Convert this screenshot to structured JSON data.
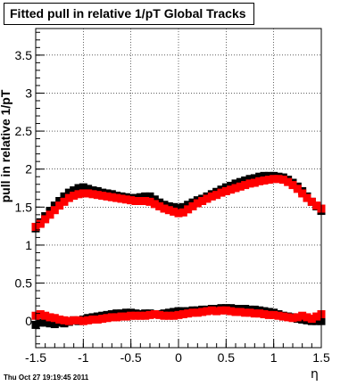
{
  "title": "Fitted pull in relative 1/pT  Global Tracks",
  "timestamp": "Thu Oct 27 19:19:45 2011",
  "chart_data": {
    "type": "scatter",
    "title": "Fitted pull in relative 1/pT  Global Tracks",
    "xlabel": "η",
    "ylabel": "pull in relative 1/pT",
    "xlim": [
      -1.5,
      1.5
    ],
    "ylim": [
      -0.35,
      3.85
    ],
    "x_ticks": [
      "-1.5",
      "-1",
      "-0.5",
      "0",
      "0.5",
      "1",
      "1.5"
    ],
    "y_ticks": [
      "0",
      "0.5",
      "1",
      "1.5",
      "2",
      "2.5",
      "3",
      "3.5"
    ],
    "grid": true,
    "marker": "square",
    "x": [
      -1.5,
      -1.45,
      -1.4,
      -1.35,
      -1.3,
      -1.25,
      -1.2,
      -1.15,
      -1.1,
      -1.05,
      -1.0,
      -0.95,
      -0.9,
      -0.85,
      -0.8,
      -0.75,
      -0.7,
      -0.65,
      -0.6,
      -0.55,
      -0.5,
      -0.45,
      -0.4,
      -0.35,
      -0.3,
      -0.25,
      -0.2,
      -0.15,
      -0.1,
      -0.05,
      0.0,
      0.05,
      0.1,
      0.15,
      0.2,
      0.25,
      0.3,
      0.35,
      0.4,
      0.45,
      0.5,
      0.55,
      0.6,
      0.65,
      0.7,
      0.75,
      0.8,
      0.85,
      0.9,
      0.95,
      1.0,
      1.05,
      1.1,
      1.15,
      1.2,
      1.25,
      1.3,
      1.35,
      1.4,
      1.45,
      1.5
    ],
    "series": [
      {
        "color": "#000000",
        "values": [
          1.22,
          1.3,
          1.38,
          1.45,
          1.52,
          1.58,
          1.64,
          1.69,
          1.72,
          1.75,
          1.76,
          1.74,
          1.72,
          1.71,
          1.69,
          1.68,
          1.67,
          1.65,
          1.64,
          1.63,
          1.62,
          1.62,
          1.63,
          1.64,
          1.64,
          1.6,
          1.56,
          1.53,
          1.51,
          1.5,
          1.49,
          1.5,
          1.53,
          1.56,
          1.59,
          1.61,
          1.64,
          1.67,
          1.7,
          1.73,
          1.76,
          1.78,
          1.81,
          1.83,
          1.85,
          1.87,
          1.88,
          1.9,
          1.91,
          1.91,
          1.91,
          1.9,
          1.89,
          1.86,
          1.82,
          1.77,
          1.71,
          1.64,
          1.57,
          1.51,
          1.45
        ]
      },
      {
        "color": "#ff0000",
        "values": [
          1.24,
          1.28,
          1.34,
          1.4,
          1.46,
          1.52,
          1.57,
          1.62,
          1.65,
          1.67,
          1.68,
          1.68,
          1.67,
          1.66,
          1.65,
          1.64,
          1.63,
          1.62,
          1.61,
          1.6,
          1.59,
          1.58,
          1.58,
          1.58,
          1.57,
          1.54,
          1.51,
          1.48,
          1.46,
          1.44,
          1.42,
          1.43,
          1.47,
          1.51,
          1.55,
          1.58,
          1.61,
          1.64,
          1.66,
          1.69,
          1.71,
          1.73,
          1.75,
          1.77,
          1.79,
          1.81,
          1.82,
          1.84,
          1.85,
          1.86,
          1.87,
          1.87,
          1.86,
          1.83,
          1.79,
          1.74,
          1.68,
          1.62,
          1.57,
          1.52,
          1.48
        ]
      },
      {
        "color": "#000000",
        "values": [
          -0.05,
          -0.02,
          -0.02,
          -0.03,
          -0.04,
          -0.02,
          -0.03,
          -0.01,
          0.01,
          0.0,
          0.02,
          0.04,
          0.05,
          0.06,
          0.07,
          0.08,
          0.09,
          0.1,
          0.1,
          0.11,
          0.11,
          0.1,
          0.09,
          0.1,
          0.1,
          0.09,
          0.09,
          0.1,
          0.11,
          0.12,
          0.13,
          0.13,
          0.13,
          0.14,
          0.14,
          0.15,
          0.15,
          0.16,
          0.16,
          0.17,
          0.17,
          0.17,
          0.16,
          0.16,
          0.16,
          0.15,
          0.15,
          0.14,
          0.13,
          0.12,
          0.11,
          0.09,
          0.07,
          0.06,
          0.05,
          0.03,
          0.02,
          0.01,
          0.0,
          0.0,
          0.0
        ]
      },
      {
        "color": "#ff0000",
        "values": [
          0.07,
          0.09,
          0.07,
          0.05,
          0.04,
          0.02,
          0.01,
          0.0,
          0.01,
          0.01,
          0.0,
          0.01,
          0.02,
          0.02,
          0.03,
          0.04,
          0.05,
          0.05,
          0.06,
          0.06,
          0.07,
          0.07,
          0.07,
          0.07,
          0.08,
          0.09,
          0.08,
          0.07,
          0.07,
          0.07,
          0.08,
          0.09,
          0.1,
          0.11,
          0.11,
          0.12,
          0.13,
          0.14,
          0.13,
          0.14,
          0.14,
          0.13,
          0.12,
          0.12,
          0.11,
          0.11,
          0.1,
          0.1,
          0.09,
          0.08,
          0.08,
          0.07,
          0.06,
          0.05,
          0.04,
          0.05,
          0.07,
          0.05,
          0.03,
          0.06,
          0.09
        ]
      }
    ]
  }
}
